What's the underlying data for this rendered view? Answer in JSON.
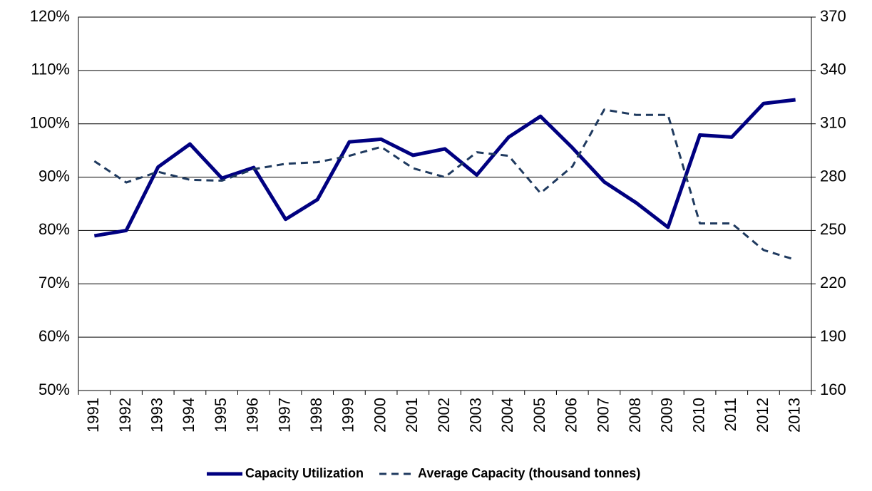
{
  "chart_data": {
    "type": "line",
    "categories": [
      "1991",
      "1992",
      "1993",
      "1994",
      "1995",
      "1996",
      "1997",
      "1998",
      "1999",
      "2000",
      "2001",
      "2002",
      "2003",
      "2004",
      "2005",
      "2006",
      "2007",
      "2008",
      "2009",
      "2010",
      "2011",
      "2012",
      "2013"
    ],
    "series": [
      {
        "name": "Capacity Utilization",
        "color": "#000080",
        "style": "solid",
        "axis": "y",
        "values": [
          79.0,
          80.0,
          91.9,
          96.2,
          89.8,
          91.8,
          82.1,
          85.8,
          96.6,
          97.1,
          94.1,
          95.3,
          90.4,
          97.5,
          101.4,
          95.5,
          89.1,
          85.2,
          80.6,
          97.9,
          97.5,
          103.8,
          104.5
        ]
      },
      {
        "name": "Average Capacity (thousand tonnes)",
        "color": "#1f3a5f",
        "style": "dashed",
        "axis": "y2",
        "values": [
          289,
          277,
          283,
          278.5,
          278,
          284.5,
          287.5,
          288.4,
          292,
          297,
          285,
          280,
          294,
          292,
          271,
          286,
          318,
          315,
          315,
          254,
          254,
          239,
          233.5
        ]
      }
    ],
    "ylim": [
      50,
      120
    ],
    "yticks": [
      {
        "value": 50,
        "label": "50%"
      },
      {
        "value": 60,
        "label": "60%"
      },
      {
        "value": 70,
        "label": "70%"
      },
      {
        "value": 80,
        "label": "80%"
      },
      {
        "value": 90,
        "label": "90%"
      },
      {
        "value": 100,
        "label": "100%"
      },
      {
        "value": 110,
        "label": "110%"
      },
      {
        "value": 120,
        "label": "120%"
      }
    ],
    "y2lim": [
      160,
      370
    ],
    "y2ticks": [
      160,
      190,
      220,
      250,
      280,
      310,
      340,
      370
    ],
    "grid": true,
    "legend": "bottom"
  }
}
